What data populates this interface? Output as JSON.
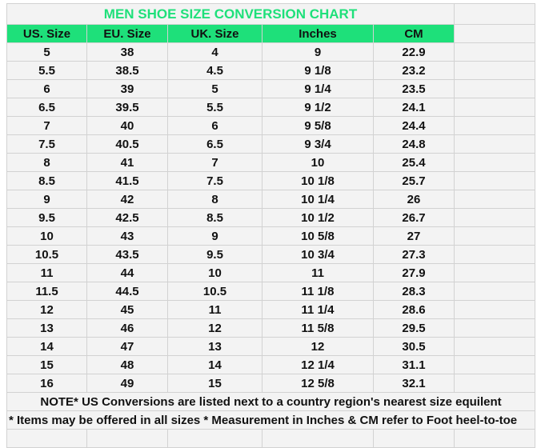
{
  "title": "MEN SHOE SIZE CONVERSION CHART",
  "colors": {
    "accent_green": "#1ee07a",
    "cell_bg": "#f3f3f3",
    "grid": "#d2d2d2"
  },
  "headers": [
    "US. Size",
    "EU. Size",
    "UK. Size",
    "Inches",
    "CM"
  ],
  "rows": [
    [
      "5",
      "38",
      "4",
      "9",
      "22.9"
    ],
    [
      "5.5",
      "38.5",
      "4.5",
      "9 1/8",
      "23.2"
    ],
    [
      "6",
      "39",
      "5",
      "9 1/4",
      "23.5"
    ],
    [
      "6.5",
      "39.5",
      "5.5",
      "9 1/2",
      "24.1"
    ],
    [
      "7",
      "40",
      "6",
      "9 5/8",
      "24.4"
    ],
    [
      "7.5",
      "40.5",
      "6.5",
      "9 3/4",
      "24.8"
    ],
    [
      "8",
      "41",
      "7",
      "10",
      "25.4"
    ],
    [
      "8.5",
      "41.5",
      "7.5",
      "10 1/8",
      "25.7"
    ],
    [
      "9",
      "42",
      "8",
      "10 1/4",
      "26"
    ],
    [
      "9.5",
      "42.5",
      "8.5",
      "10 1/2",
      "26.7"
    ],
    [
      "10",
      "43",
      "9",
      "10 5/8",
      "27"
    ],
    [
      "10.5",
      "43.5",
      "9.5",
      "10 3/4",
      "27.3"
    ],
    [
      "11",
      "44",
      "10",
      "11",
      "27.9"
    ],
    [
      "11.5",
      "44.5",
      "10.5",
      "11 1/8",
      "28.3"
    ],
    [
      "12",
      "45",
      "11",
      "11 1/4",
      "28.6"
    ],
    [
      "13",
      "46",
      "12",
      "11 5/8",
      "29.5"
    ],
    [
      "14",
      "47",
      "13",
      "12",
      "30.5"
    ],
    [
      "15",
      "48",
      "14",
      "12 1/4",
      "31.1"
    ],
    [
      "16",
      "49",
      "15",
      "12 5/8",
      "32.1"
    ]
  ],
  "notes": [
    "NOTE* US Conversions are listed next to a country region's nearest size equilent",
    "* Items may be offered in all sizes * Measurement in Inches & CM refer to Foot heel-to-toe"
  ]
}
